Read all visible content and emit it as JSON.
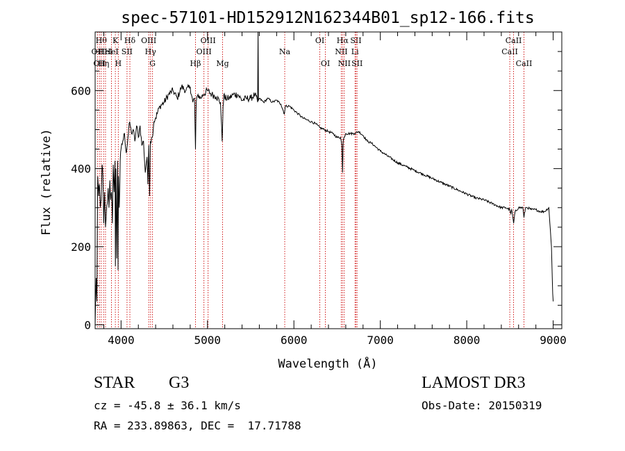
{
  "chart_data": {
    "type": "line",
    "title": "spec-57101-HD152912N162344B01_sp12-166.fits",
    "xlabel": "Wavelength (Å)",
    "ylabel": "Flux (relative)",
    "xlim": [
      3700,
      9100
    ],
    "ylim": [
      -10,
      750
    ],
    "xticks": [
      4000,
      5000,
      6000,
      7000,
      8000,
      9000
    ],
    "yticks": [
      0,
      200,
      400,
      600
    ],
    "x_minor_step": 200,
    "y_minor_step": 50,
    "grid": false,
    "series": [
      {
        "name": "spectrum",
        "x": [
          3700,
          3712,
          3720,
          3730,
          3740,
          3750,
          3760,
          3770,
          3780,
          3790,
          3800,
          3810,
          3820,
          3830,
          3840,
          3850,
          3860,
          3870,
          3880,
          3890,
          3900,
          3910,
          3920,
          3930,
          3935,
          3940,
          3950,
          3960,
          3965,
          3970,
          3980,
          3990,
          4000,
          4020,
          4040,
          4060,
          4080,
          4100,
          4120,
          4140,
          4160,
          4180,
          4200,
          4220,
          4240,
          4260,
          4280,
          4300,
          4310,
          4320,
          4330,
          4340,
          4360,
          4380,
          4400,
          4450,
          4500,
          4550,
          4600,
          4650,
          4700,
          4750,
          4800,
          4830,
          4850,
          4861,
          4870,
          4890,
          4920,
          4950,
          5000,
          5050,
          5100,
          5150,
          5170,
          5180,
          5190,
          5200,
          5250,
          5300,
          5350,
          5400,
          5450,
          5500,
          5550,
          5580,
          5585,
          5590,
          5600,
          5650,
          5700,
          5750,
          5800,
          5850,
          5890,
          5900,
          5950,
          6000,
          6050,
          6100,
          6150,
          6200,
          6250,
          6300,
          6350,
          6400,
          6450,
          6500,
          6540,
          6555,
          6563,
          6570,
          6580,
          6600,
          6650,
          6700,
          6750,
          6800,
          6850,
          6900,
          6950,
          7000,
          7100,
          7200,
          7300,
          7400,
          7500,
          7600,
          7700,
          7800,
          7900,
          8000,
          8100,
          8200,
          8300,
          8400,
          8450,
          8498,
          8510,
          8520,
          8542,
          8560,
          8600,
          8650,
          8662,
          8680,
          8700,
          8750,
          8800,
          8850,
          8900,
          8950,
          8980,
          8995,
          9000
        ],
        "y": [
          0,
          120,
          60,
          380,
          330,
          360,
          300,
          320,
          410,
          380,
          260,
          340,
          250,
          290,
          310,
          350,
          300,
          370,
          320,
          340,
          260,
          410,
          340,
          420,
          150,
          400,
          170,
          420,
          140,
          380,
          300,
          420,
          450,
          470,
          490,
          440,
          480,
          520,
          490,
          500,
          470,
          510,
          480,
          510,
          460,
          470,
          390,
          430,
          360,
          460,
          330,
          470,
          480,
          520,
          530,
          560,
          570,
          590,
          600,
          580,
          610,
          600,
          610,
          570,
          580,
          450,
          570,
          590,
          580,
          590,
          600,
          590,
          585,
          570,
          470,
          560,
          590,
          580,
          580,
          590,
          590,
          575,
          580,
          580,
          590,
          570,
          750,
          575,
          580,
          570,
          580,
          570,
          575,
          565,
          540,
          560,
          560,
          550,
          540,
          530,
          525,
          520,
          515,
          505,
          500,
          495,
          490,
          480,
          480,
          460,
          390,
          470,
          480,
          490,
          490,
          490,
          495,
          485,
          470,
          465,
          455,
          445,
          430,
          415,
          405,
          395,
          385,
          375,
          365,
          355,
          345,
          335,
          325,
          320,
          310,
          300,
          300,
          295,
          285,
          295,
          260,
          290,
          300,
          300,
          275,
          300,
          300,
          295,
          295,
          290,
          290,
          300,
          200,
          80,
          60
        ]
      }
    ],
    "line_marks": [
      {
        "x": 3727,
        "label": "OII",
        "row": 2
      },
      {
        "x": 3750,
        "label": "OII",
        "row": 3
      },
      {
        "x": 3771,
        "label": "Hθ",
        "row": 1
      },
      {
        "x": 3798,
        "label": "Hη",
        "row": 3
      },
      {
        "x": 3820,
        "label": "HeI",
        "row": 2
      },
      {
        "x": 3889,
        "label": "HeI",
        "row": 2
      },
      {
        "x": 3934,
        "label": "K",
        "row": 1
      },
      {
        "x": 3968,
        "label": "H",
        "row": 3
      },
      {
        "x": 4069,
        "label": "SII",
        "row": 2
      },
      {
        "x": 4102,
        "label": "Hδ",
        "row": 1
      },
      {
        "x": 4320,
        "label": "OIII",
        "row": 1
      },
      {
        "x": 4341,
        "label": "Hγ",
        "row": 2
      },
      {
        "x": 4364,
        "label": "G",
        "row": 3
      },
      {
        "x": 4861,
        "label": "Hβ",
        "row": 3
      },
      {
        "x": 4959,
        "label": "OIII",
        "row": 2
      },
      {
        "x": 5007,
        "label": "OIII",
        "row": 1
      },
      {
        "x": 5175,
        "label": "Mg",
        "row": 3
      },
      {
        "x": 5894,
        "label": "Na",
        "row": 2
      },
      {
        "x": 6300,
        "label": "OI",
        "row": 1
      },
      {
        "x": 6364,
        "label": "OI",
        "row": 3
      },
      {
        "x": 6548,
        "label": "NII",
        "row": 2
      },
      {
        "x": 6563,
        "label": "Hα",
        "row": 1
      },
      {
        "x": 6583,
        "label": "NII",
        "row": 3
      },
      {
        "x": 6707,
        "label": "Li",
        "row": 2
      },
      {
        "x": 6717,
        "label": "SII",
        "row": 1
      },
      {
        "x": 6731,
        "label": "SII",
        "row": 3
      },
      {
        "x": 8498,
        "label": "CaII",
        "row": 2
      },
      {
        "x": 8542,
        "label": "CaII",
        "row": 1
      },
      {
        "x": 8662,
        "label": "CaII",
        "row": 3
      }
    ],
    "colors": {
      "spectrum": "#000000",
      "line_marks": "#cc0000",
      "axes": "#000000"
    }
  },
  "info": {
    "object_class": "STAR",
    "subclass": "G3",
    "survey": "LAMOST DR3",
    "redshift": "cz = -45.8 ± 36.1 km/s",
    "obs_date": "Obs-Date: 20150319",
    "coords": "RA = 233.89863, DEC =  17.71788"
  }
}
